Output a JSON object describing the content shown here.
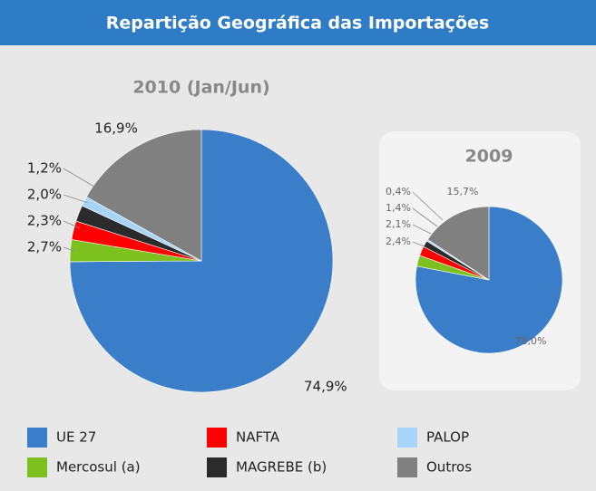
{
  "title": "Repartição Geográfica das Importações",
  "chart_data": [
    {
      "type": "pie",
      "title": "2010 (Jan/Jun)",
      "categories": [
        "UE 27",
        "Mercosul (a)",
        "NAFTA",
        "MAGREBE (b)",
        "PALOP",
        "Outros"
      ],
      "values": [
        74.9,
        2.7,
        2.3,
        2.0,
        1.2,
        16.9
      ],
      "value_labels": [
        "74,9%",
        "2,7%",
        "2,3%",
        "2,0%",
        "1,2%",
        "16,9%"
      ],
      "colors": [
        "#3a7dc8",
        "#7dc11e",
        "#ff0000",
        "#2b2b2b",
        "#a8d4f8",
        "#808080"
      ]
    },
    {
      "type": "pie",
      "title": "2009",
      "categories": [
        "UE 27",
        "Mercosul (a)",
        "NAFTA",
        "MAGREBE (b)",
        "PALOP",
        "Outros"
      ],
      "values": [
        78.0,
        2.4,
        2.1,
        1.4,
        0.4,
        15.7
      ],
      "value_labels": [
        "78,0%",
        "2,4%",
        "2,1%",
        "1,4%",
        "0,4%",
        "15,7%"
      ],
      "colors": [
        "#3a7dc8",
        "#7dc11e",
        "#ff0000",
        "#2b2b2b",
        "#a8d4f8",
        "#808080"
      ]
    }
  ]
}
